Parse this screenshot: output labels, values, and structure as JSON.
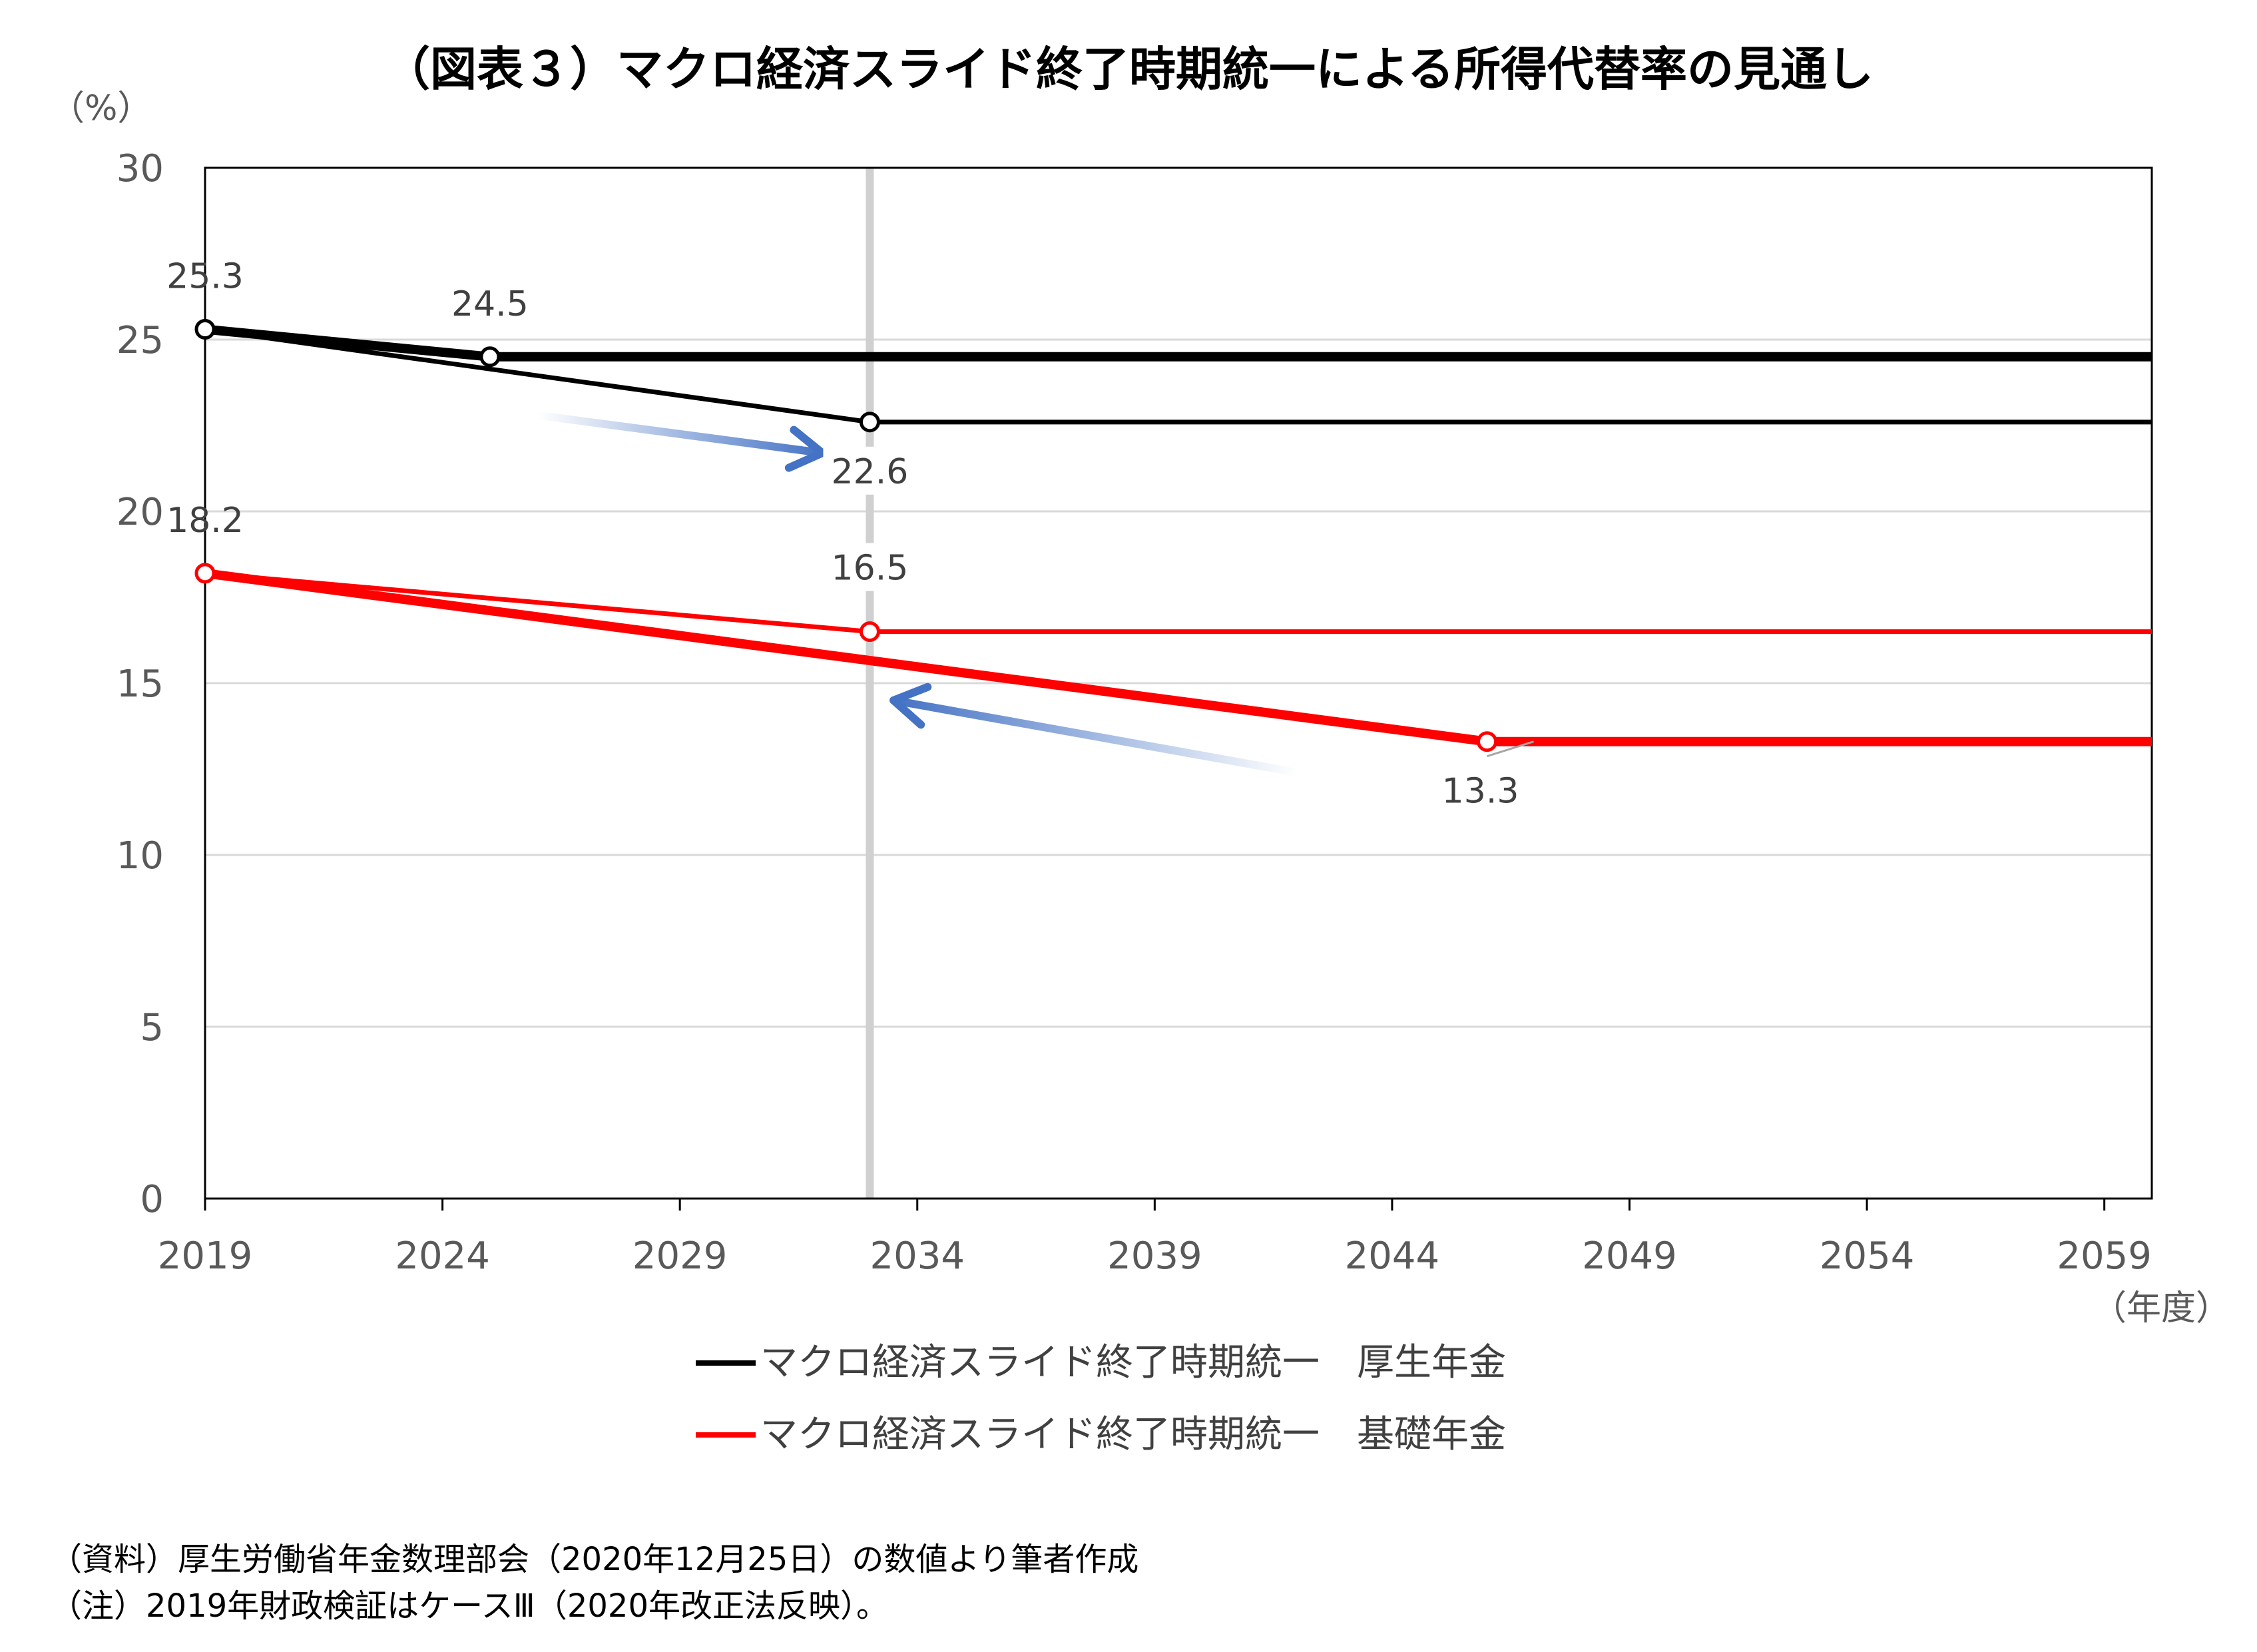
{
  "title": "（図表３）マクロ経済スライド終了時期統一による所得代替率の見通し",
  "y_unit": "（%）",
  "x_unit": "（年度）",
  "notes": [
    "（資料）厚生労働省年金数理部会（2020年12月25日）の数値より筆者作成",
    "（注）2019年財政検証はケースⅢ（2020年改正法反映）。"
  ],
  "legend": [
    {
      "label": "マクロ経済スライド終了時期統一　厚生年金",
      "color": "#000000"
    },
    {
      "label": "マクロ経済スライド終了時期統一　基礎年金",
      "color": "#ff0000"
    }
  ],
  "chart_data": {
    "type": "line",
    "title": "（図表３）マクロ経済スライド終了時期統一による所得代替率の見通し",
    "xlabel": "（年度）",
    "ylabel": "（%）",
    "xlim": [
      2019,
      2060
    ],
    "ylim": [
      0,
      30
    ],
    "yticks": [
      0,
      5,
      10,
      15,
      20,
      25,
      30
    ],
    "xticks": [
      2019,
      2024,
      2029,
      2034,
      2039,
      2044,
      2049,
      2054,
      2059
    ],
    "grid": true,
    "legend_position": "bottom",
    "reference_line_x": 2033,
    "series": [
      {
        "color": "#000000",
        "weight": "thick",
        "points": [
          [
            2019,
            25.3
          ],
          [
            2025,
            24.5
          ],
          [
            2060,
            24.5
          ]
        ],
        "markers": [
          [
            2019,
            25.3
          ],
          [
            2025,
            24.5
          ]
        ]
      },
      {
        "name": "マクロ経済スライド終了時期統一　厚生年金",
        "color": "#000000",
        "weight": "thin",
        "points": [
          [
            2019,
            25.3
          ],
          [
            2033,
            22.6
          ],
          [
            2060,
            22.6
          ]
        ],
        "markers": [
          [
            2033,
            22.6
          ]
        ]
      },
      {
        "color": "#ff0000",
        "weight": "thick",
        "points": [
          [
            2019,
            18.2
          ],
          [
            2046,
            13.3
          ],
          [
            2060,
            13.3
          ]
        ],
        "markers": [
          [
            2019,
            18.2
          ],
          [
            2046,
            13.3
          ]
        ]
      },
      {
        "name": "マクロ経済スライド終了時期統一　基礎年金",
        "color": "#ff0000",
        "weight": "thin",
        "points": [
          [
            2019,
            18.2
          ],
          [
            2033,
            16.5
          ],
          [
            2060,
            16.5
          ]
        ],
        "markers": [
          [
            2033,
            16.5
          ]
        ]
      }
    ],
    "data_labels": [
      {
        "x": 2019,
        "y": 25.3,
        "text": "25.3"
      },
      {
        "x": 2025,
        "y": 24.5,
        "text": "24.5"
      },
      {
        "x": 2033,
        "y": 22.6,
        "text": "22.6"
      },
      {
        "x": 2019,
        "y": 18.2,
        "text": "18.2"
      },
      {
        "x": 2033,
        "y": 16.5,
        "text": "16.5"
      },
      {
        "x": 2046,
        "y": 13.3,
        "text": "13.3"
      }
    ],
    "arrows": [
      {
        "from": [
          2026,
          22.8
        ],
        "to": [
          2032,
          21.7
        ],
        "color": "#4472c4"
      },
      {
        "from": [
          2042,
          12.4
        ],
        "to": [
          2033.5,
          14.5
        ],
        "color": "#4472c4"
      }
    ]
  }
}
